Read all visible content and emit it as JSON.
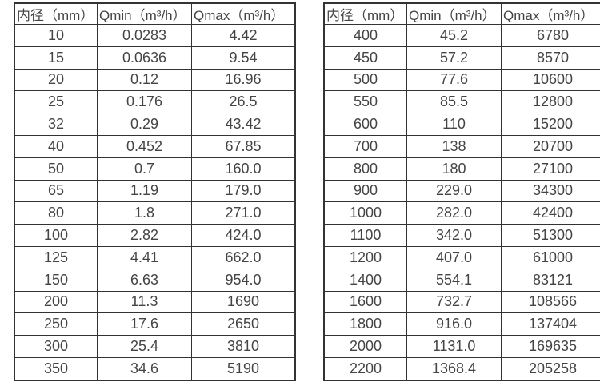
{
  "colors": {
    "background": "#ffffff",
    "border": "#333333",
    "text": "#444444"
  },
  "tables": {
    "left": {
      "headers": [
        "内径（mm）",
        "Qmin（m³/h）",
        "Qmax（m³/h）"
      ],
      "rows": [
        [
          "10",
          "0.0283",
          "4.42"
        ],
        [
          "15",
          "0.0636",
          "9.54"
        ],
        [
          "20",
          "0.12",
          "16.96"
        ],
        [
          "25",
          "0.176",
          "26.5"
        ],
        [
          "32",
          "0.29",
          "43.42"
        ],
        [
          "40",
          "0.452",
          "67.85"
        ],
        [
          "50",
          "0.7",
          "160.0"
        ],
        [
          "65",
          "1.19",
          "179.0"
        ],
        [
          "80",
          "1.8",
          "271.0"
        ],
        [
          "100",
          "2.82",
          "424.0"
        ],
        [
          "125",
          "4.41",
          "662.0"
        ],
        [
          "150",
          "6.63",
          "954.0"
        ],
        [
          "200",
          "11.3",
          "1690"
        ],
        [
          "250",
          "17.6",
          "2650"
        ],
        [
          "300",
          "25.4",
          "3810"
        ],
        [
          "350",
          "34.6",
          "5190"
        ]
      ]
    },
    "right": {
      "headers": [
        "内径（mm）",
        "Qmin（m³/h）",
        "Qmax（m³/h）"
      ],
      "rows": [
        [
          "400",
          "45.2",
          "6780"
        ],
        [
          "450",
          "57.2",
          "8570"
        ],
        [
          "500",
          "77.6",
          "10600"
        ],
        [
          "550",
          "85.5",
          "12800"
        ],
        [
          "600",
          "110",
          "15200"
        ],
        [
          "700",
          "138",
          "20700"
        ],
        [
          "800",
          "180",
          "27100"
        ],
        [
          "900",
          "229.0",
          "34300"
        ],
        [
          "1000",
          "282.0",
          "42400"
        ],
        [
          "1100",
          "342.0",
          "51300"
        ],
        [
          "1200",
          "407.0",
          "61000"
        ],
        [
          "1400",
          "554.1",
          "83121"
        ],
        [
          "1600",
          "732.7",
          "108566"
        ],
        [
          "1800",
          "916.0",
          "137404"
        ],
        [
          "2000",
          "1131.0",
          "169635"
        ],
        [
          "2200",
          "1368.4",
          "205258"
        ]
      ]
    }
  }
}
